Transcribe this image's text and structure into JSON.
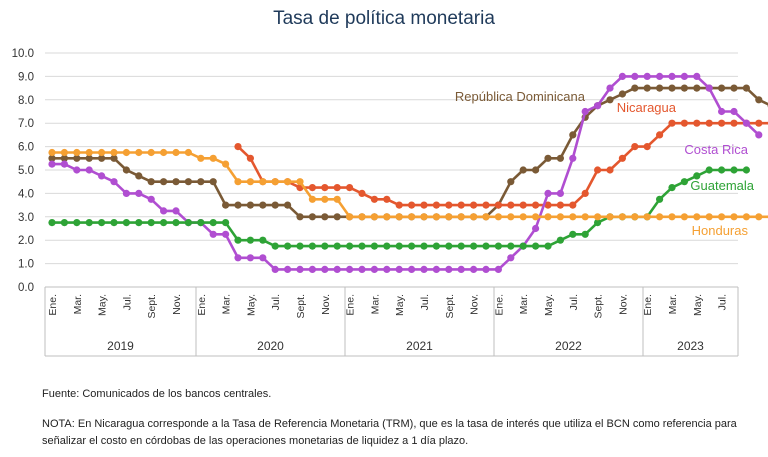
{
  "chart_data": {
    "type": "line",
    "title": "Tasa de política monetaria",
    "xlabel": "",
    "ylabel": "",
    "ylim": [
      0,
      10
    ],
    "yticks": [
      "0.0",
      "1.0",
      "2.0",
      "3.0",
      "4.0",
      "5.0",
      "6.0",
      "7.0",
      "8.0",
      "9.0",
      "10.0"
    ],
    "grid": true,
    "month_ticks": [
      "Ene.",
      "Mar.",
      "May.",
      "Jul.",
      "Sept.",
      "Nov.",
      "Ene.",
      "Mar.",
      "May.",
      "Jul.",
      "Sept.",
      "Nov.",
      "Ene.",
      "Mar.",
      "May.",
      "Jul.",
      "Sept.",
      "Nov.",
      "Ene.",
      "Mar.",
      "May.",
      "Jul.",
      "Sept.",
      "Nov.",
      "Ene.",
      "Mar.",
      "May.",
      "Jul."
    ],
    "years": [
      "2019",
      "2020",
      "2021",
      "2022",
      "2023"
    ],
    "series": [
      {
        "name": "República Dominicana",
        "color": "#7a5a36",
        "start_index": 0,
        "values": [
          5.5,
          5.5,
          5.5,
          5.5,
          5.5,
          5.5,
          5.0,
          4.75,
          4.5,
          4.5,
          4.5,
          4.5,
          4.5,
          4.5,
          3.5,
          3.5,
          3.5,
          3.5,
          3.5,
          3.5,
          3.0,
          3.0,
          3.0,
          3.0,
          3.0,
          3.0,
          3.0,
          3.0,
          3.0,
          3.0,
          3.0,
          3.0,
          3.0,
          3.0,
          3.0,
          3.0,
          3.5,
          4.5,
          5.0,
          5.0,
          5.5,
          5.5,
          6.5,
          7.25,
          7.75,
          8.0,
          8.25,
          8.5,
          8.5,
          8.5,
          8.5,
          8.5,
          8.5,
          8.5,
          8.5,
          8.5,
          8.5,
          8.0,
          7.75
        ]
      },
      {
        "name": "Nicaragua",
        "color": "#e4572e",
        "start_index": 15,
        "values": [
          6.0,
          5.5,
          4.5,
          4.5,
          4.5,
          4.25,
          4.25,
          4.25,
          4.25,
          4.25,
          4.0,
          3.75,
          3.75,
          3.5,
          3.5,
          3.5,
          3.5,
          3.5,
          3.5,
          3.5,
          3.5,
          3.5,
          3.5,
          3.5,
          3.5,
          3.5,
          3.5,
          3.5,
          4.0,
          5.0,
          5.0,
          5.5,
          6.0,
          6.0,
          6.5,
          7.0,
          7.0,
          7.0,
          7.0,
          7.0,
          7.0,
          7.0,
          7.0,
          7.0
        ]
      },
      {
        "name": "Costa Rica",
        "color": "#b04ed1",
        "start_index": 0,
        "values": [
          5.25,
          5.25,
          5.0,
          5.0,
          4.75,
          4.5,
          4.0,
          4.0,
          3.75,
          3.25,
          3.25,
          2.75,
          2.75,
          2.25,
          2.25,
          1.25,
          1.25,
          1.25,
          0.75,
          0.75,
          0.75,
          0.75,
          0.75,
          0.75,
          0.75,
          0.75,
          0.75,
          0.75,
          0.75,
          0.75,
          0.75,
          0.75,
          0.75,
          0.75,
          0.75,
          0.75,
          0.75,
          1.25,
          1.75,
          2.5,
          4.0,
          4.0,
          5.5,
          7.5,
          7.75,
          8.5,
          9.0,
          9.0,
          9.0,
          9.0,
          9.0,
          9.0,
          9.0,
          8.5,
          7.5,
          7.5,
          7.0,
          6.5
        ]
      },
      {
        "name": "Guatemala",
        "color": "#2ea336",
        "start_index": 0,
        "values": [
          2.75,
          2.75,
          2.75,
          2.75,
          2.75,
          2.75,
          2.75,
          2.75,
          2.75,
          2.75,
          2.75,
          2.75,
          2.75,
          2.75,
          2.75,
          2.0,
          2.0,
          2.0,
          1.75,
          1.75,
          1.75,
          1.75,
          1.75,
          1.75,
          1.75,
          1.75,
          1.75,
          1.75,
          1.75,
          1.75,
          1.75,
          1.75,
          1.75,
          1.75,
          1.75,
          1.75,
          1.75,
          1.75,
          1.75,
          1.75,
          1.75,
          2.0,
          2.25,
          2.25,
          2.75,
          3.0,
          3.0,
          3.0,
          3.0,
          3.75,
          4.25,
          4.5,
          4.75,
          5.0,
          5.0,
          5.0,
          5.0
        ]
      },
      {
        "name": "Honduras",
        "color": "#f5a033",
        "start_index": 0,
        "values": [
          5.75,
          5.75,
          5.75,
          5.75,
          5.75,
          5.75,
          5.75,
          5.75,
          5.75,
          5.75,
          5.75,
          5.75,
          5.5,
          5.5,
          5.25,
          4.5,
          4.5,
          4.5,
          4.5,
          4.5,
          4.5,
          3.75,
          3.75,
          3.75,
          3.0,
          3.0,
          3.0,
          3.0,
          3.0,
          3.0,
          3.0,
          3.0,
          3.0,
          3.0,
          3.0,
          3.0,
          3.0,
          3.0,
          3.0,
          3.0,
          3.0,
          3.0,
          3.0,
          3.0,
          3.0,
          3.0,
          3.0,
          3.0,
          3.0,
          3.0,
          3.0,
          3.0,
          3.0,
          3.0,
          3.0,
          3.0,
          3.0,
          3.0,
          3.0
        ]
      }
    ],
    "annotations": [
      "República Dominicana",
      "Nicaragua",
      "Costa Rica",
      "Guatemala",
      "Honduras"
    ]
  },
  "notes": {
    "source": "Fuente: Comunicados de los bancos centrales.",
    "note": "NOTA: En Nicaragua corresponde a la Tasa de Referencia Monetaria (TRM), que es la tasa de interés que utiliza el BCN como referencia para señalizar el costo en córdobas de las operaciones monetarias de liquidez a 1 día plazo."
  }
}
